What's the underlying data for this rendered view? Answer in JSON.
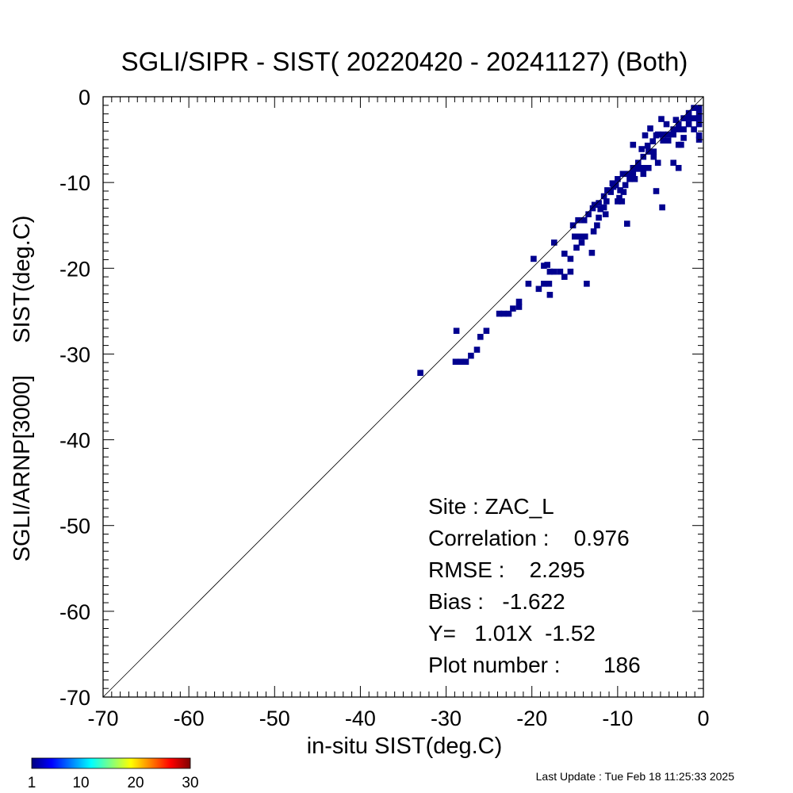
{
  "chart_data": {
    "type": "heatmap",
    "title": "SGLI/SIPR - SIST( 20220420 - 20241127) (Both)",
    "xlabel": "in-situ SIST(deg.C)",
    "ylabel": "SGLI/ARNP[3000]     SIST(deg.C)",
    "xlim": [
      -70,
      0
    ],
    "ylim": [
      -70,
      0
    ],
    "x_ticks": [
      -70,
      -60,
      -50,
      -40,
      -30,
      -20,
      -10,
      0
    ],
    "y_ticks": [
      0,
      -10,
      -20,
      -30,
      -40,
      -50,
      -60,
      -70
    ],
    "reference_line": "1:1",
    "grid": false,
    "cell_size": 0.7,
    "cell_color": "#00008f",
    "points": [
      [
        -33.0,
        -32.2
      ],
      [
        -28.8,
        -27.3
      ],
      [
        -28.9,
        -30.9
      ],
      [
        -28.3,
        -30.9
      ],
      [
        -27.7,
        -30.9
      ],
      [
        -27.1,
        -30.2
      ],
      [
        -26.4,
        -29.5
      ],
      [
        -26.0,
        -28.0
      ],
      [
        -25.3,
        -27.3
      ],
      [
        -23.8,
        -25.3
      ],
      [
        -23.3,
        -25.3
      ],
      [
        -22.7,
        -25.3
      ],
      [
        -22.2,
        -24.7
      ],
      [
        -21.5,
        -24.5
      ],
      [
        -21.5,
        -23.9
      ],
      [
        -20.4,
        -21.8
      ],
      [
        -19.8,
        -18.9
      ],
      [
        -19.2,
        -22.4
      ],
      [
        -18.6,
        -21.8
      ],
      [
        -18.0,
        -21.8
      ],
      [
        -18.6,
        -19.7
      ],
      [
        -18.2,
        -19.6
      ],
      [
        -17.9,
        -20.4
      ],
      [
        -17.4,
        -20.4
      ],
      [
        -17.9,
        -23.1
      ],
      [
        -17.4,
        -17.0
      ],
      [
        -16.7,
        -20.4
      ],
      [
        -16.2,
        -21.0
      ],
      [
        -15.5,
        -20.4
      ],
      [
        -15.5,
        -18.9
      ],
      [
        -14.8,
        -17.6
      ],
      [
        -14.2,
        -17.0
      ],
      [
        -13.8,
        -16.3
      ],
      [
        -13.0,
        -18.2
      ],
      [
        -15.0,
        -16.3
      ],
      [
        -14.4,
        -16.3
      ],
      [
        -13.6,
        -21.8
      ],
      [
        -15.2,
        -15.0
      ],
      [
        -14.6,
        -14.4
      ],
      [
        -13.9,
        -14.4
      ],
      [
        -12.8,
        -15.7
      ],
      [
        -13.4,
        -13.7
      ],
      [
        -12.9,
        -13.0
      ],
      [
        -12.2,
        -12.4
      ],
      [
        -11.6,
        -11.6
      ],
      [
        -12.7,
        -12.6
      ],
      [
        -12.0,
        -13.1
      ],
      [
        -11.4,
        -13.7
      ],
      [
        -11.6,
        -12.9
      ],
      [
        -11.3,
        -12.2
      ],
      [
        -10.8,
        -11.1
      ],
      [
        -10.2,
        -10.3
      ],
      [
        -10.0,
        -12.2
      ],
      [
        -9.5,
        -12.2
      ],
      [
        -8.9,
        -14.8
      ],
      [
        -9.7,
        -10.9
      ],
      [
        -9.1,
        -10.3
      ],
      [
        -8.6,
        -9.6
      ],
      [
        -8.0,
        -9.6
      ],
      [
        -10.6,
        -10.1
      ],
      [
        -10.0,
        -9.6
      ],
      [
        -9.4,
        -9.0
      ],
      [
        -8.8,
        -9.0
      ],
      [
        -8.2,
        -8.9
      ],
      [
        -7.6,
        -8.4
      ],
      [
        -9.3,
        -11.1
      ],
      [
        -8.2,
        -8.3
      ],
      [
        -7.0,
        -9.0
      ],
      [
        -7.7,
        -8.3
      ],
      [
        -7.0,
        -8.3
      ],
      [
        -6.4,
        -8.3
      ],
      [
        -7.6,
        -7.7
      ],
      [
        -7.0,
        -7.0
      ],
      [
        -6.4,
        -6.4
      ],
      [
        -5.8,
        -6.4
      ],
      [
        -5.8,
        -7.0
      ],
      [
        -5.3,
        -7.7
      ],
      [
        -6.5,
        -5.7
      ],
      [
        -5.9,
        -5.2
      ],
      [
        -5.3,
        -4.4
      ],
      [
        -4.7,
        -4.4
      ],
      [
        -4.7,
        -5.1
      ],
      [
        -4.1,
        -5.1
      ],
      [
        -3.5,
        -3.8
      ],
      [
        -2.9,
        -3.2
      ],
      [
        -2.3,
        -2.5
      ],
      [
        -1.7,
        -1.9
      ],
      [
        -1.1,
        -1.3
      ],
      [
        -0.5,
        -1.3
      ],
      [
        -0.5,
        -1.9
      ],
      [
        -0.5,
        -2.5
      ],
      [
        -0.5,
        -3.2
      ],
      [
        -1.1,
        -2.5
      ],
      [
        -1.7,
        -3.2
      ],
      [
        -2.3,
        -3.8
      ],
      [
        -6.2,
        -3.7
      ],
      [
        -5.5,
        -4.5
      ],
      [
        -7.2,
        -6.1
      ],
      [
        -8.2,
        -5.6
      ],
      [
        -6.8,
        -4.5
      ],
      [
        -4.9,
        -2.6
      ],
      [
        -4.3,
        -3.2
      ],
      [
        -3.2,
        -2.7
      ],
      [
        -2.3,
        -4.8
      ],
      [
        -2.6,
        -5.6
      ],
      [
        -3.5,
        -7.7
      ],
      [
        -2.9,
        -8.3
      ],
      [
        -2.9,
        -5.6
      ],
      [
        -0.5,
        -4.5
      ],
      [
        -0.5,
        -5.0
      ],
      [
        -1.1,
        -3.8
      ],
      [
        -1.7,
        -2.5
      ],
      [
        -2.9,
        -3.8
      ],
      [
        -3.5,
        -4.4
      ],
      [
        -4.1,
        -4.4
      ],
      [
        -5.5,
        -11.0
      ],
      [
        -4.8,
        -12.9
      ],
      [
        -12.4,
        -15.0
      ],
      [
        -16.2,
        -18.3
      ],
      [
        -10.5,
        -10.5
      ],
      [
        -9.8,
        -11.8
      ],
      [
        -11.2,
        -10.9
      ],
      [
        -12.2,
        -14.1
      ]
    ],
    "colorbar": {
      "min": 1,
      "max": 30,
      "tick_labels": [
        "1",
        "10",
        "20",
        "30"
      ],
      "colors": [
        "#00007f",
        "#0000ff",
        "#0080ff",
        "#00ffff",
        "#80ff80",
        "#ffff00",
        "#ff8000",
        "#ff0000",
        "#7f0000"
      ]
    },
    "stats": [
      "Site : ZAC_L",
      "Correlation :    0.976",
      "RMSE :    2.295",
      "Bias :   -1.622",
      "Y=   1.01X  -1.52",
      "Plot number :       186"
    ]
  },
  "footer": {
    "last_update": "Last Update : Tue Feb 18 11:25:33 2025"
  }
}
